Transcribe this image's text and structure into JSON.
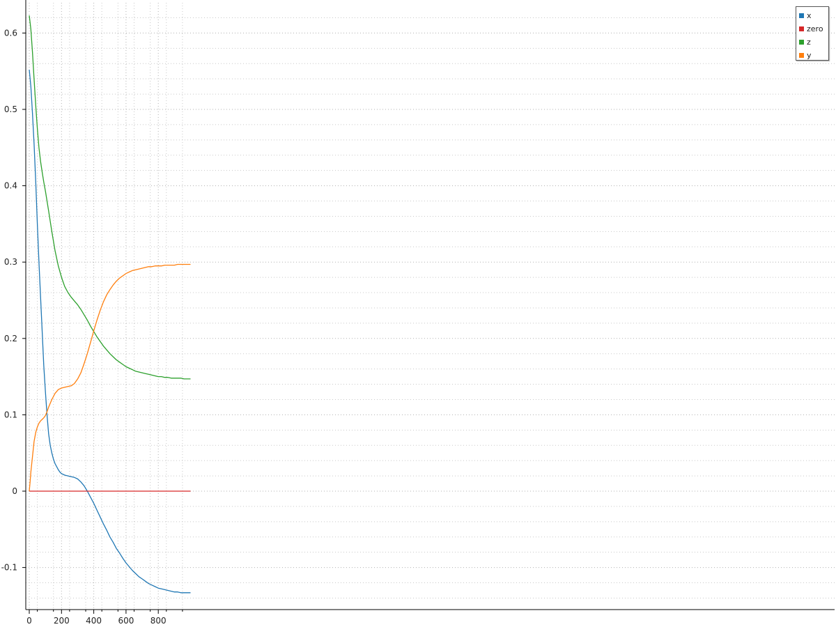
{
  "chart_data": {
    "type": "line",
    "xlim": [
      0,
      1000
    ],
    "ylim": [
      -0.155,
      0.635
    ],
    "x_ticks": [
      0,
      200,
      400,
      600,
      800
    ],
    "x_tick_labels": [
      "0",
      "200",
      "400",
      "600",
      "800"
    ],
    "y_ticks": [
      -0.1,
      0,
      0.1,
      0.2,
      0.3,
      0.4,
      0.5,
      0.6
    ],
    "y_tick_labels": [
      "-0.1",
      "0",
      "0.1",
      "0.2",
      "0.3",
      "0.4",
      "0.5",
      "0.6"
    ],
    "grid": true,
    "legend_position": "top-right",
    "legend_order": [
      "x",
      "zero",
      "z",
      "y"
    ],
    "series": [
      {
        "name": "x",
        "color": "#1f77b4",
        "x": [
          0,
          10,
          20,
          30,
          40,
          50,
          60,
          70,
          80,
          90,
          100,
          110,
          120,
          130,
          140,
          150,
          160,
          170,
          180,
          190,
          200,
          220,
          240,
          260,
          280,
          300,
          320,
          340,
          360,
          380,
          400,
          420,
          440,
          460,
          480,
          500,
          520,
          540,
          560,
          580,
          600,
          620,
          640,
          660,
          680,
          700,
          720,
          740,
          760,
          780,
          800,
          820,
          840,
          860,
          880,
          900,
          920,
          940,
          960,
          980,
          1000
        ],
        "y": [
          0.552,
          0.53,
          0.495,
          0.455,
          0.405,
          0.35,
          0.3,
          0.255,
          0.21,
          0.165,
          0.13,
          0.1,
          0.075,
          0.06,
          0.05,
          0.042,
          0.036,
          0.032,
          0.028,
          0.025,
          0.023,
          0.021,
          0.02,
          0.019,
          0.018,
          0.016,
          0.012,
          0.007,
          0.0,
          -0.008,
          -0.016,
          -0.025,
          -0.034,
          -0.043,
          -0.051,
          -0.06,
          -0.067,
          -0.075,
          -0.081,
          -0.088,
          -0.094,
          -0.099,
          -0.104,
          -0.108,
          -0.112,
          -0.115,
          -0.118,
          -0.121,
          -0.123,
          -0.125,
          -0.127,
          -0.128,
          -0.129,
          -0.13,
          -0.131,
          -0.132,
          -0.132,
          -0.133,
          -0.133,
          -0.133,
          -0.133
        ]
      },
      {
        "name": "zero",
        "color": "#d62728",
        "x": [
          0,
          1000
        ],
        "y": [
          0,
          0
        ]
      },
      {
        "name": "z",
        "color": "#2ca02c",
        "x": [
          0,
          10,
          20,
          30,
          40,
          50,
          60,
          70,
          80,
          90,
          100,
          120,
          140,
          160,
          180,
          200,
          220,
          240,
          260,
          280,
          300,
          320,
          340,
          360,
          380,
          400,
          420,
          440,
          460,
          480,
          500,
          520,
          540,
          560,
          580,
          600,
          620,
          640,
          660,
          680,
          700,
          720,
          740,
          760,
          780,
          800,
          820,
          840,
          860,
          880,
          900,
          920,
          940,
          960,
          980,
          1000
        ],
        "y": [
          0.623,
          0.605,
          0.575,
          0.54,
          0.505,
          0.475,
          0.45,
          0.432,
          0.418,
          0.405,
          0.393,
          0.367,
          0.34,
          0.315,
          0.295,
          0.28,
          0.268,
          0.26,
          0.254,
          0.249,
          0.244,
          0.238,
          0.231,
          0.224,
          0.216,
          0.209,
          0.202,
          0.196,
          0.19,
          0.185,
          0.18,
          0.176,
          0.172,
          0.169,
          0.166,
          0.163,
          0.161,
          0.159,
          0.157,
          0.156,
          0.155,
          0.154,
          0.153,
          0.152,
          0.151,
          0.15,
          0.15,
          0.149,
          0.149,
          0.148,
          0.148,
          0.148,
          0.148,
          0.147,
          0.147,
          0.147
        ]
      },
      {
        "name": "y",
        "color": "#ff7f0e",
        "x": [
          0,
          5,
          10,
          20,
          30,
          40,
          50,
          60,
          70,
          80,
          90,
          100,
          110,
          120,
          140,
          160,
          180,
          200,
          220,
          240,
          260,
          280,
          300,
          320,
          340,
          360,
          380,
          400,
          420,
          440,
          460,
          480,
          500,
          520,
          540,
          560,
          580,
          600,
          620,
          640,
          660,
          680,
          700,
          720,
          740,
          760,
          780,
          800,
          820,
          840,
          860,
          880,
          900,
          920,
          940,
          960,
          980,
          1000
        ],
        "y": [
          0.0,
          0.012,
          0.025,
          0.045,
          0.065,
          0.077,
          0.084,
          0.089,
          0.092,
          0.094,
          0.096,
          0.099,
          0.104,
          0.11,
          0.12,
          0.128,
          0.133,
          0.135,
          0.136,
          0.137,
          0.138,
          0.141,
          0.147,
          0.155,
          0.167,
          0.18,
          0.195,
          0.21,
          0.224,
          0.237,
          0.248,
          0.257,
          0.264,
          0.27,
          0.275,
          0.279,
          0.282,
          0.285,
          0.287,
          0.289,
          0.29,
          0.291,
          0.292,
          0.293,
          0.294,
          0.294,
          0.295,
          0.295,
          0.295,
          0.296,
          0.296,
          0.296,
          0.296,
          0.297,
          0.297,
          0.297,
          0.297,
          0.297
        ]
      }
    ]
  }
}
